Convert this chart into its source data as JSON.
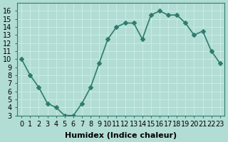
{
  "x": [
    0,
    1,
    2,
    3,
    4,
    5,
    6,
    7,
    8,
    9,
    10,
    11,
    12,
    13,
    14,
    15,
    16,
    17,
    18,
    19,
    20,
    21,
    22,
    23
  ],
  "y": [
    10,
    8,
    6.5,
    4.5,
    4,
    3,
    3,
    4.5,
    6.5,
    9.5,
    12.5,
    14,
    14.5,
    14.5,
    12.5,
    15.5,
    16,
    15.5,
    15.5,
    14.5,
    13,
    13.5,
    11,
    9.5
  ],
  "line_color": "#2e7d6e",
  "marker": "D",
  "marker_size": 3,
  "bg_color": "#b2ddd4",
  "grid_color": "#c8ebe5",
  "xlabel": "Humidex (Indice chaleur)",
  "xlabel_fontsize": 8,
  "xlim": [
    -0.5,
    23.5
  ],
  "ylim": [
    3,
    17
  ],
  "yticks": [
    3,
    4,
    5,
    6,
    7,
    8,
    9,
    10,
    11,
    12,
    13,
    14,
    15,
    16
  ],
  "xticks": [
    0,
    1,
    2,
    3,
    4,
    5,
    6,
    7,
    8,
    9,
    10,
    11,
    12,
    13,
    14,
    15,
    16,
    17,
    18,
    19,
    20,
    21,
    22,
    23
  ],
  "tick_label_fontsize": 7,
  "line_width": 1.2
}
